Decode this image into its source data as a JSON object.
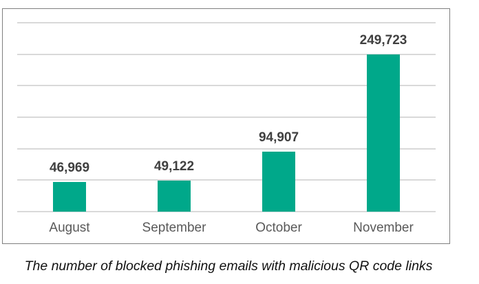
{
  "chart_data": {
    "type": "bar",
    "title": "",
    "caption": "The number of blocked phishing emails with malicious QR code links",
    "categories": [
      "August",
      "September",
      "October",
      "November"
    ],
    "values": [
      46969,
      49122,
      94907,
      249723
    ],
    "value_labels": [
      "46,969",
      "49,122",
      "94,907",
      "249,723"
    ],
    "xlabel": "",
    "ylabel": "",
    "ylim": [
      0,
      300000
    ],
    "y_gridlines": [
      0,
      50000,
      100000,
      150000,
      200000,
      250000,
      300000
    ],
    "grid": true,
    "y_tick_labels_visible": false,
    "legend": null,
    "bar_color": "#00a88a"
  }
}
